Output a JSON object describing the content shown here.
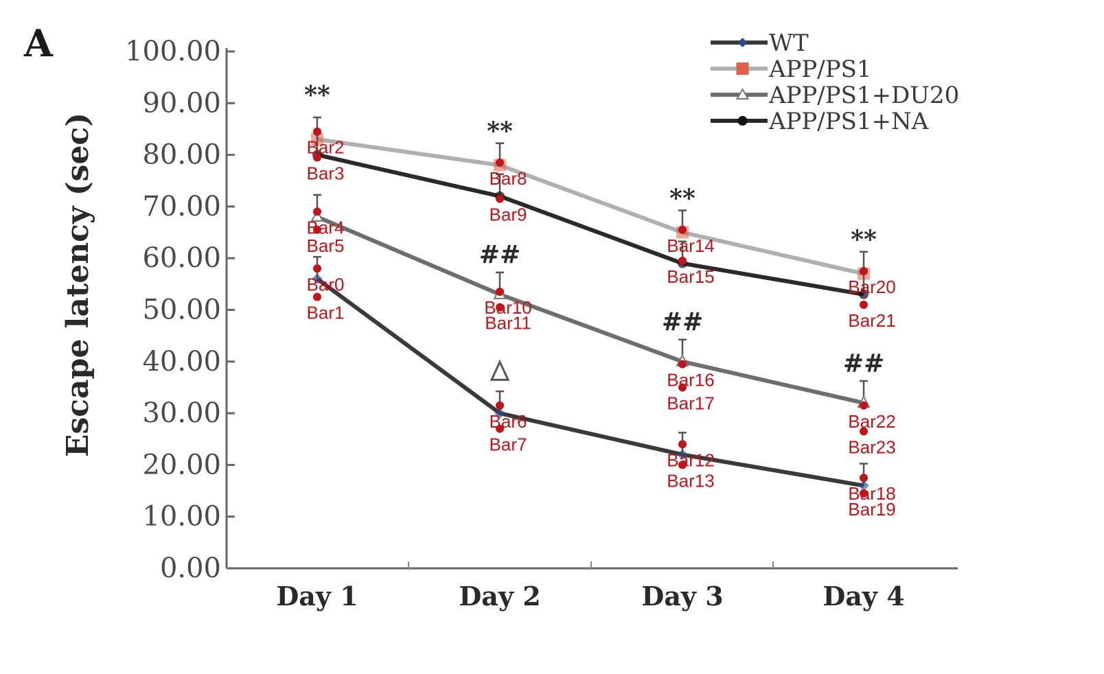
{
  "panel_label": "A",
  "chart_data": {
    "type": "line",
    "ylabel": "Escape latency (sec)",
    "xlabel": "",
    "ylim": [
      0,
      100
    ],
    "y_ticks": [
      "0.00",
      "10.00",
      "20.00",
      "30.00",
      "40.00",
      "50.00",
      "60.00",
      "70.00",
      "80.00",
      "90.00",
      "100.00"
    ],
    "categories": [
      "Day 1",
      "Day 2",
      "Day 3",
      "Day 4"
    ],
    "legend_position": "top-right",
    "grid": false,
    "series": [
      {
        "name": "WT",
        "color": "#3a3a3a",
        "marker_color": "#2c4a8a",
        "marker": "diamond",
        "values": [
          56,
          30,
          22,
          16
        ]
      },
      {
        "name": "APP/PS1",
        "color": "#b0b0b0",
        "marker_color": "#e0604a",
        "marker": "square",
        "values": [
          83,
          78,
          65,
          57
        ]
      },
      {
        "name": "APP/PS1+DU20",
        "color": "#6e6e6e",
        "marker_color": "#ffffff",
        "marker": "triangle",
        "values": [
          68,
          53,
          40,
          32
        ]
      },
      {
        "name": "APP/PS1+NA",
        "color": "#2a2a2a",
        "marker_color": "#111111",
        "marker": "circle",
        "values": [
          80,
          72,
          59,
          53
        ]
      }
    ],
    "significance": [
      {
        "text": "**",
        "category": "Day 1",
        "y": 90
      },
      {
        "text": "**",
        "category": "Day 2",
        "y": 83
      },
      {
        "text": "**",
        "category": "Day 3",
        "y": 70
      },
      {
        "text": "**",
        "category": "Day 4",
        "y": 62
      },
      {
        "text": "##",
        "category": "Day 2",
        "y": 59
      },
      {
        "text": "##",
        "category": "Day 3",
        "y": 46
      },
      {
        "text": "##",
        "category": "Day 4",
        "y": 38
      },
      {
        "text": "Δ",
        "category": "Day 2",
        "y": 37
      }
    ],
    "annotations": [
      {
        "label": "Bar0",
        "category": "Day 1",
        "y": 58
      },
      {
        "label": "Bar1",
        "category": "Day 1",
        "y": 52.5
      },
      {
        "label": "Bar2",
        "category": "Day 1",
        "y": 84.5
      },
      {
        "label": "Bar3",
        "category": "Day 1",
        "y": 79.5
      },
      {
        "label": "Bar4",
        "category": "Day 1",
        "y": 69
      },
      {
        "label": "Bar5",
        "category": "Day 1",
        "y": 65.5
      },
      {
        "label": "Bar6",
        "category": "Day 2",
        "y": 31.5
      },
      {
        "label": "Bar7",
        "category": "Day 2",
        "y": 27
      },
      {
        "label": "Bar8",
        "category": "Day 2",
        "y": 78.5
      },
      {
        "label": "Bar9",
        "category": "Day 2",
        "y": 71.5
      },
      {
        "label": "Bar10",
        "category": "Day 2",
        "y": 53.5
      },
      {
        "label": "Bar11",
        "category": "Day 2",
        "y": 50.5
      },
      {
        "label": "Bar12",
        "category": "Day 3",
        "y": 24
      },
      {
        "label": "Bar13",
        "category": "Day 3",
        "y": 20
      },
      {
        "label": "Bar14",
        "category": "Day 3",
        "y": 65.5
      },
      {
        "label": "Bar15",
        "category": "Day 3",
        "y": 59.5
      },
      {
        "label": "Bar16",
        "category": "Day 3",
        "y": 39.5
      },
      {
        "label": "Bar17",
        "category": "Day 3",
        "y": 35
      },
      {
        "label": "Bar18",
        "category": "Day 4",
        "y": 17.5
      },
      {
        "label": "Bar19",
        "category": "Day 4",
        "y": 14.5
      },
      {
        "label": "Bar20",
        "category": "Day 4",
        "y": 57.5
      },
      {
        "label": "Bar21",
        "category": "Day 4",
        "y": 51
      },
      {
        "label": "Bar22",
        "category": "Day 4",
        "y": 31.5
      },
      {
        "label": "Bar23",
        "category": "Day 4",
        "y": 26.5
      }
    ],
    "annotation_color": "#c0161b"
  }
}
